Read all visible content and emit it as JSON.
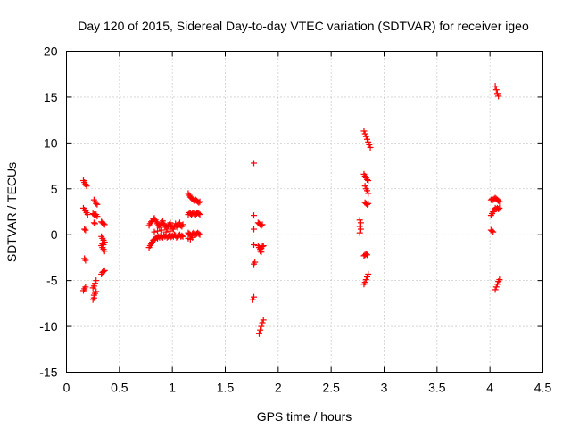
{
  "chart_data": {
    "type": "scatter",
    "title": "Day 120 of 2015, Sidereal Day-to-day VTEC variation (SDTVAR) for receiver igeo",
    "xlabel": "GPS time / hours",
    "ylabel": "SDTVAR / TECUs",
    "xlim": [
      0,
      4.5
    ],
    "ylim": [
      -15,
      20
    ],
    "xticks": [
      0,
      0.5,
      1,
      1.5,
      2,
      2.5,
      3,
      3.5,
      4,
      4.5
    ],
    "xtick_labels": [
      "0",
      "0.5",
      "1",
      "1.5",
      "2",
      "2.5",
      "3",
      "3.5",
      "4",
      "4.5"
    ],
    "yticks": [
      -15,
      -10,
      -5,
      0,
      5,
      10,
      15,
      20
    ],
    "ytick_labels": [
      "-15",
      "-10",
      "-5",
      "0",
      "5",
      "10",
      "15",
      "20"
    ],
    "grid": true,
    "marker": "+",
    "color": "#ff0000",
    "series": [
      {
        "name": "SDTVAR",
        "points": [
          [
            0.16,
            5.9
          ],
          [
            0.17,
            5.7
          ],
          [
            0.18,
            5.5
          ],
          [
            0.19,
            5.3
          ],
          [
            0.16,
            2.9
          ],
          [
            0.17,
            2.7
          ],
          [
            0.18,
            2.6
          ],
          [
            0.19,
            2.4
          ],
          [
            0.2,
            2.2
          ],
          [
            0.17,
            0.6
          ],
          [
            0.18,
            0.5
          ],
          [
            0.17,
            -2.6
          ],
          [
            0.18,
            -2.8
          ],
          [
            0.16,
            -6.1
          ],
          [
            0.17,
            -5.9
          ],
          [
            0.18,
            -5.7
          ],
          [
            0.26,
            3.8
          ],
          [
            0.27,
            3.6
          ],
          [
            0.28,
            3.4
          ],
          [
            0.29,
            3.3
          ],
          [
            0.25,
            2.3
          ],
          [
            0.26,
            2.2
          ],
          [
            0.27,
            2.1
          ],
          [
            0.28,
            2.2
          ],
          [
            0.29,
            2.0
          ],
          [
            0.26,
            1.3
          ],
          [
            0.27,
            1.2
          ],
          [
            0.25,
            -5.8
          ],
          [
            0.26,
            -5.6
          ],
          [
            0.27,
            -5.3
          ],
          [
            0.28,
            -5.0
          ],
          [
            0.26,
            -6.6
          ],
          [
            0.27,
            -6.4
          ],
          [
            0.28,
            -6.2
          ],
          [
            0.25,
            -7.1
          ],
          [
            0.26,
            -6.9
          ],
          [
            0.33,
            1.4
          ],
          [
            0.34,
            1.3
          ],
          [
            0.35,
            1.2
          ],
          [
            0.36,
            1.1
          ],
          [
            0.33,
            -0.2
          ],
          [
            0.34,
            -0.4
          ],
          [
            0.35,
            -0.6
          ],
          [
            0.36,
            -0.8
          ],
          [
            0.33,
            -1.2
          ],
          [
            0.34,
            -1.4
          ],
          [
            0.35,
            -1.6
          ],
          [
            0.36,
            -1.8
          ],
          [
            0.34,
            -1.0
          ],
          [
            0.35,
            -1.1
          ],
          [
            0.33,
            -4.3
          ],
          [
            0.34,
            -4.1
          ],
          [
            0.35,
            -4.0
          ],
          [
            0.36,
            -3.9
          ],
          [
            0.78,
            -1.4
          ],
          [
            0.79,
            -1.2
          ],
          [
            0.8,
            -1.0
          ],
          [
            0.81,
            -0.8
          ],
          [
            0.82,
            -0.6
          ],
          [
            0.83,
            -0.5
          ],
          [
            0.84,
            -0.4
          ],
          [
            0.85,
            -0.3
          ],
          [
            0.86,
            -0.4
          ],
          [
            0.87,
            -0.2
          ],
          [
            0.88,
            -0.3
          ],
          [
            0.89,
            -0.1
          ],
          [
            0.9,
            -0.2
          ],
          [
            0.91,
            -0.3
          ],
          [
            0.92,
            -0.1
          ],
          [
            0.93,
            -0.2
          ],
          [
            0.94,
            -0.1
          ],
          [
            0.95,
            -0.3
          ],
          [
            0.96,
            -0.2
          ],
          [
            0.97,
            -0.1
          ],
          [
            0.98,
            -0.3
          ],
          [
            0.99,
            -0.2
          ],
          [
            1.0,
            -0.1
          ],
          [
            1.01,
            -0.2
          ],
          [
            1.02,
            0.0
          ],
          [
            1.03,
            -0.1
          ],
          [
            1.04,
            -0.3
          ],
          [
            1.05,
            -0.2
          ],
          [
            1.06,
            -0.1
          ],
          [
            1.07,
            0.0
          ],
          [
            1.08,
            -0.2
          ],
          [
            1.09,
            -0.1
          ],
          [
            1.1,
            -0.2
          ],
          [
            0.78,
            1.0
          ],
          [
            0.79,
            1.2
          ],
          [
            0.8,
            1.4
          ],
          [
            0.81,
            1.5
          ],
          [
            0.82,
            1.7
          ],
          [
            0.83,
            1.8
          ],
          [
            0.84,
            1.6
          ],
          [
            0.85,
            1.4
          ],
          [
            0.86,
            1.2
          ],
          [
            0.87,
            1.0
          ],
          [
            0.88,
            0.8
          ],
          [
            0.89,
            1.1
          ],
          [
            0.9,
            1.3
          ],
          [
            0.91,
            1.5
          ],
          [
            0.92,
            1.2
          ],
          [
            0.93,
            1.0
          ],
          [
            0.94,
            0.8
          ],
          [
            0.95,
            0.6
          ],
          [
            0.96,
            0.9
          ],
          [
            0.97,
            1.1
          ],
          [
            0.98,
            1.3
          ],
          [
            0.99,
            1.0
          ],
          [
            1.0,
            0.8
          ],
          [
            1.01,
            0.6
          ],
          [
            1.02,
            0.9
          ],
          [
            1.03,
            1.2
          ],
          [
            1.04,
            1.0
          ],
          [
            1.05,
            0.8
          ],
          [
            1.06,
            1.1
          ],
          [
            1.07,
            1.3
          ],
          [
            1.08,
            1.0
          ],
          [
            1.09,
            0.9
          ],
          [
            1.1,
            1.1
          ],
          [
            0.83,
            0.3
          ],
          [
            0.86,
            0.4
          ],
          [
            0.9,
            0.5
          ],
          [
            0.94,
            0.3
          ],
          [
            0.98,
            0.4
          ],
          [
            1.15,
            4.5
          ],
          [
            1.16,
            4.3
          ],
          [
            1.17,
            4.1
          ],
          [
            1.18,
            4.0
          ],
          [
            1.19,
            3.9
          ],
          [
            1.2,
            3.8
          ],
          [
            1.21,
            3.7
          ],
          [
            1.22,
            3.8
          ],
          [
            1.23,
            3.7
          ],
          [
            1.24,
            3.6
          ],
          [
            1.25,
            3.5
          ],
          [
            1.26,
            3.6
          ],
          [
            1.15,
            2.2
          ],
          [
            1.16,
            2.4
          ],
          [
            1.17,
            2.3
          ],
          [
            1.18,
            2.2
          ],
          [
            1.19,
            2.3
          ],
          [
            1.2,
            2.4
          ],
          [
            1.21,
            2.3
          ],
          [
            1.22,
            2.2
          ],
          [
            1.23,
            2.3
          ],
          [
            1.24,
            2.4
          ],
          [
            1.25,
            2.3
          ],
          [
            1.26,
            2.2
          ],
          [
            1.15,
            0.2
          ],
          [
            1.16,
            0.1
          ],
          [
            1.17,
            0.0
          ],
          [
            1.18,
            -0.1
          ],
          [
            1.19,
            0.1
          ],
          [
            1.2,
            0.2
          ],
          [
            1.21,
            0.1
          ],
          [
            1.22,
            0.0
          ],
          [
            1.23,
            0.1
          ],
          [
            1.24,
            0.2
          ],
          [
            1.25,
            0.1
          ],
          [
            1.26,
            0.0
          ],
          [
            1.15,
            -0.4
          ],
          [
            1.17,
            -0.5
          ],
          [
            1.19,
            -0.3
          ],
          [
            1.77,
            7.8
          ],
          [
            1.77,
            2.1
          ],
          [
            1.77,
            0.6
          ],
          [
            1.77,
            -1.1
          ],
          [
            1.77,
            -3.2
          ],
          [
            1.78,
            -3.0
          ],
          [
            1.76,
            -7.1
          ],
          [
            1.77,
            -6.8
          ],
          [
            1.81,
            1.3
          ],
          [
            1.82,
            1.2
          ],
          [
            1.83,
            1.1
          ],
          [
            1.84,
            1.0
          ],
          [
            1.85,
            1.1
          ],
          [
            1.81,
            -1.2
          ],
          [
            1.82,
            -1.4
          ],
          [
            1.83,
            -1.6
          ],
          [
            1.84,
            -1.5
          ],
          [
            1.85,
            -1.3
          ],
          [
            1.86,
            -1.2
          ],
          [
            1.83,
            -1.8
          ],
          [
            1.84,
            -1.9
          ],
          [
            1.82,
            -10.8
          ],
          [
            1.83,
            -10.4
          ],
          [
            1.84,
            -10.0
          ],
          [
            1.85,
            -9.6
          ],
          [
            1.86,
            -9.3
          ],
          [
            2.77,
            1.6
          ],
          [
            2.78,
            1.3
          ],
          [
            2.77,
            0.9
          ],
          [
            2.78,
            0.6
          ],
          [
            2.77,
            0.2
          ],
          [
            2.81,
            11.3
          ],
          [
            2.82,
            11.0
          ],
          [
            2.83,
            10.7
          ],
          [
            2.84,
            10.4
          ],
          [
            2.85,
            10.1
          ],
          [
            2.86,
            9.8
          ],
          [
            2.87,
            9.5
          ],
          [
            2.81,
            6.6
          ],
          [
            2.82,
            6.4
          ],
          [
            2.83,
            6.2
          ],
          [
            2.84,
            6.0
          ],
          [
            2.85,
            5.9
          ],
          [
            2.82,
            5.3
          ],
          [
            2.83,
            5.0
          ],
          [
            2.84,
            4.8
          ],
          [
            2.85,
            4.5
          ],
          [
            2.82,
            3.5
          ],
          [
            2.83,
            3.4
          ],
          [
            2.84,
            3.3
          ],
          [
            2.85,
            3.4
          ],
          [
            2.81,
            -2.3
          ],
          [
            2.82,
            -2.2
          ],
          [
            2.83,
            -2.1
          ],
          [
            2.84,
            -2.2
          ],
          [
            2.81,
            -5.4
          ],
          [
            2.82,
            -5.2
          ],
          [
            2.83,
            -4.9
          ],
          [
            2.84,
            -4.6
          ],
          [
            2.85,
            -4.3
          ],
          [
            4.01,
            3.8
          ],
          [
            4.02,
            3.9
          ],
          [
            4.03,
            3.8
          ],
          [
            4.04,
            3.9
          ],
          [
            4.01,
            2.1
          ],
          [
            4.02,
            2.3
          ],
          [
            4.03,
            2.5
          ],
          [
            4.04,
            2.7
          ],
          [
            4.01,
            0.5
          ],
          [
            4.02,
            0.4
          ],
          [
            4.03,
            0.3
          ],
          [
            4.05,
            16.2
          ],
          [
            4.06,
            15.8
          ],
          [
            4.07,
            15.4
          ],
          [
            4.08,
            15.1
          ],
          [
            4.05,
            4.0
          ],
          [
            4.06,
            3.9
          ],
          [
            4.07,
            3.8
          ],
          [
            4.08,
            3.7
          ],
          [
            4.09,
            3.6
          ],
          [
            4.05,
            2.9
          ],
          [
            4.06,
            2.8
          ],
          [
            4.07,
            2.9
          ],
          [
            4.08,
            2.8
          ],
          [
            4.09,
            2.9
          ],
          [
            4.05,
            -6.0
          ],
          [
            4.06,
            -5.7
          ],
          [
            4.07,
            -5.4
          ],
          [
            4.08,
            -5.1
          ],
          [
            4.09,
            -4.9
          ]
        ]
      }
    ]
  }
}
